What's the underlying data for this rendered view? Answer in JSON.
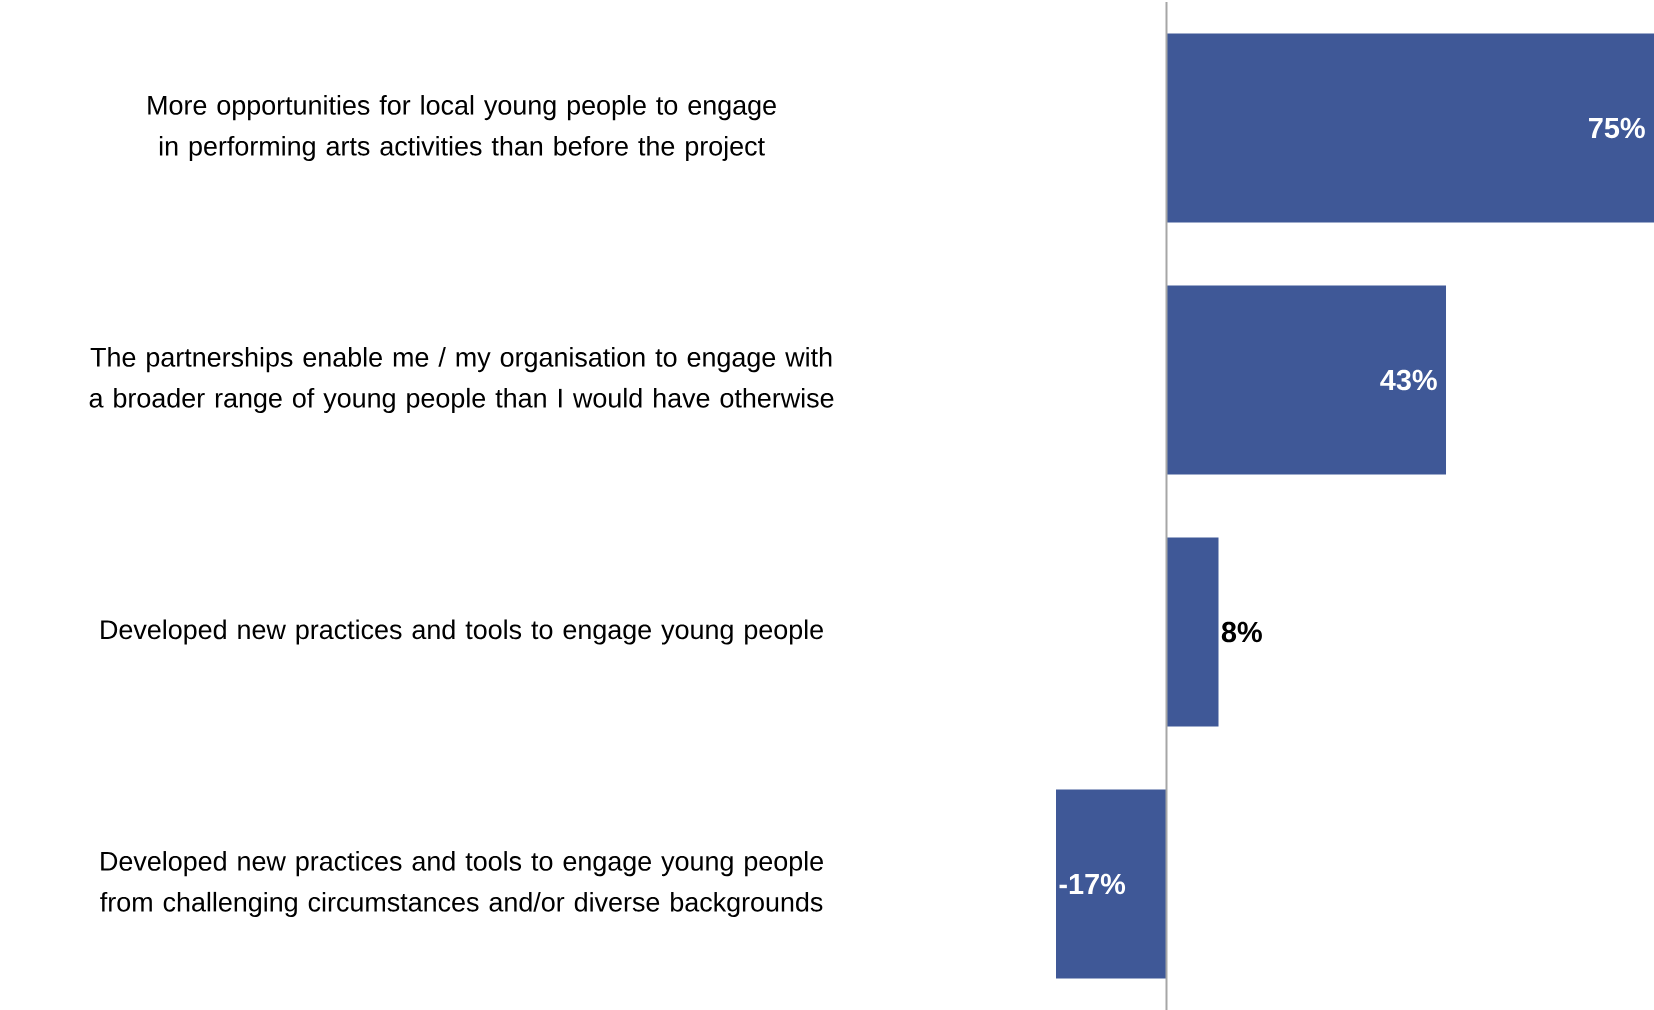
{
  "chart_data": {
    "type": "bar",
    "orientation": "horizontal",
    "categories": [
      "More opportunities for local young people to engage in performing arts activities than before the project",
      "The partnerships enable me / my organisation to engage with a broader range of young people than I would have otherwise",
      "Developed new practices and tools to engage young people",
      "Developed new practices and tools to engage young people from challenging circumstances and/or diverse backgrounds"
    ],
    "values": [
      75,
      43,
      8,
      -17
    ],
    "value_labels": [
      "75%",
      "43%",
      "8%",
      "-17%"
    ],
    "color": "#3f5897"
  }
}
